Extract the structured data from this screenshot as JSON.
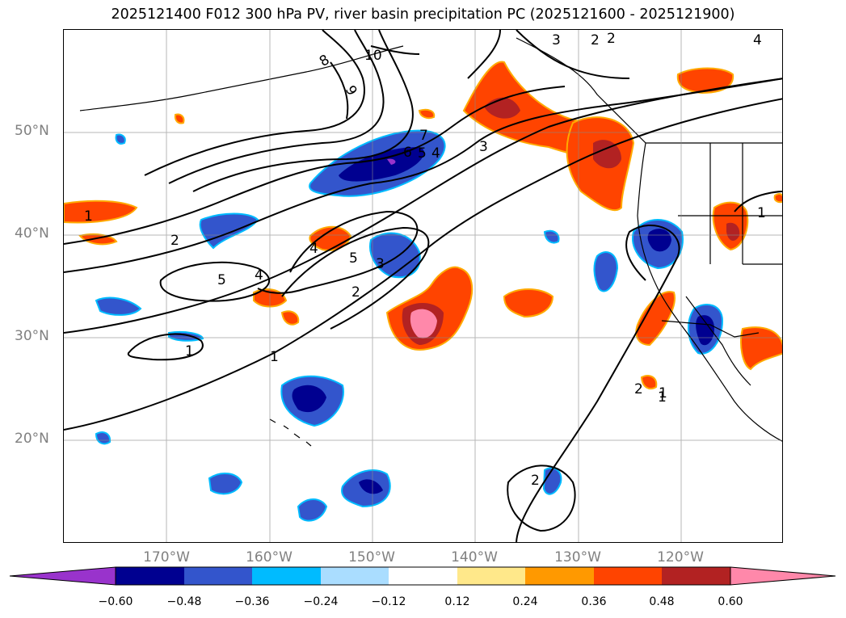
{
  "title": "2025121400 F012 300 hPa PV, river basin precipitation PC (2025121600 - 2025121900)",
  "map": {
    "projection": "PlateCarree",
    "extent": {
      "lon_min": -180,
      "lon_max": -110,
      "lat_min": 10,
      "lat_max": 60
    },
    "lat_ticks": [
      "50°N",
      "40°N",
      "30°N",
      "20°N"
    ],
    "lon_ticks": [
      "170°W",
      "160°W",
      "150°W",
      "140°W",
      "130°W",
      "120°W"
    ],
    "gridlines": true,
    "contour_labels": [
      "10",
      "9",
      "8",
      "7",
      "6",
      "5",
      "4",
      "3",
      "2",
      "2",
      "1",
      "1",
      "4",
      "5",
      "3",
      "2",
      "5",
      "4",
      "2",
      "1",
      "1",
      "2",
      "1",
      "3",
      "2",
      "4",
      "1"
    ]
  },
  "colorbar": {
    "ticks": [
      "−0.60",
      "−0.48",
      "−0.36",
      "−0.24",
      "−0.12",
      "0.12",
      "0.24",
      "0.36",
      "0.48",
      "0.60"
    ],
    "colors": [
      "#9933cc",
      "#000090",
      "#3355cc",
      "#00bbff",
      "#aaddff",
      "#ffffff",
      "#ffe88a",
      "#ff9900",
      "#ff4400",
      "#b22222",
      "#ff88aa"
    ]
  }
}
